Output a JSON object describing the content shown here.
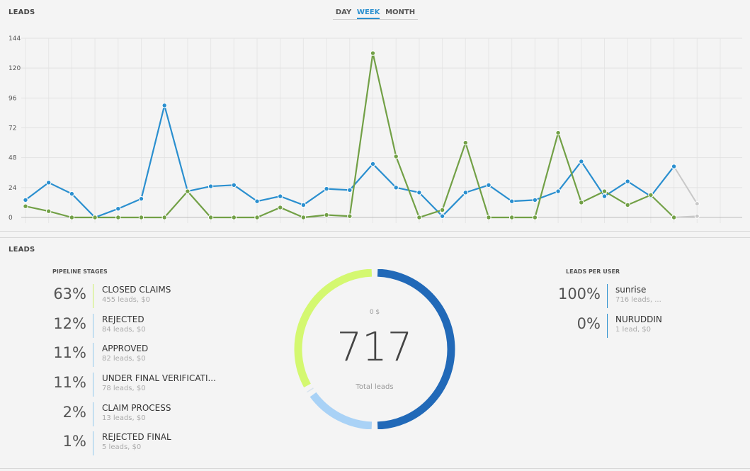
{
  "top": {
    "title": "LEADS",
    "tabs": [
      {
        "label": "DAY",
        "active": false
      },
      {
        "label": "WEEK",
        "active": true
      },
      {
        "label": "MONTH",
        "active": false
      }
    ]
  },
  "chart_data": {
    "type": "line",
    "y_ticks": [
      "0",
      "24",
      "48",
      "72",
      "96",
      "120",
      "144"
    ],
    "ylim": [
      0,
      144
    ],
    "grid": true,
    "series": [
      {
        "color": "#2a8fcf",
        "values": [
          14,
          28,
          19,
          0,
          7,
          15,
          90,
          21,
          25,
          26,
          13,
          17,
          10,
          23,
          22,
          43,
          24,
          20,
          1,
          20,
          26,
          13,
          14,
          21,
          45,
          17,
          29,
          17,
          41
        ],
        "projection": {
          "color": "#c8c8c8",
          "from_index": 28,
          "to_value": 11
        }
      },
      {
        "color": "#72a046",
        "values": [
          9,
          5,
          0,
          0,
          0,
          0,
          0,
          21,
          0,
          0,
          0,
          8,
          0,
          2,
          1,
          132,
          49,
          0,
          6,
          60,
          0,
          0,
          0,
          68,
          12,
          21,
          10,
          18,
          0
        ],
        "projection": {
          "color": "#c8c8c8",
          "from_index": 28,
          "to_value": 1
        }
      }
    ]
  },
  "bottom": {
    "title": "LEADS",
    "pipeline_title": "PIPELINE STAGES",
    "stages": [
      {
        "pct": "63%",
        "name": "CLOSED CLAIMS",
        "meta": "455 leads, $0",
        "color": "#cdf069"
      },
      {
        "pct": "12%",
        "name": "REJECTED",
        "meta": "84 leads, $0",
        "color": "#93c8ec"
      },
      {
        "pct": "11%",
        "name": "APPROVED",
        "meta": "82 leads, $0",
        "color": "#93c8ec"
      },
      {
        "pct": "11%",
        "name": "UNDER FINAL VERIFICATI...",
        "meta": "78 leads, $0",
        "color": "#93c8ec"
      },
      {
        "pct": "2%",
        "name": "CLAIM PROCESS",
        "meta": "13 leads, $0",
        "color": "#93c8ec"
      },
      {
        "pct": "1%",
        "name": "REJECTED FINAL",
        "meta": "5 leads, $0",
        "color": "#93c8ec"
      }
    ],
    "donut": {
      "amount": "0 $",
      "total": "717",
      "label": "Total leads",
      "segments": [
        {
          "value": 50,
          "color": "#2169b8"
        },
        {
          "value": 15.5,
          "color": "#a9d2f6"
        },
        {
          "value": 1,
          "color": "#d8e4ee"
        },
        {
          "value": 33.5,
          "color": "#d4f870"
        }
      ]
    },
    "users_title": "LEADS PER USER",
    "users": [
      {
        "pct": "100%",
        "name": "sunrise",
        "meta": "716 leads, ...",
        "color": "#2a8fcf"
      },
      {
        "pct": "0%",
        "name": "NURUDDIN",
        "meta": "1 lead, $0",
        "color": "#2a8fcf"
      }
    ]
  }
}
